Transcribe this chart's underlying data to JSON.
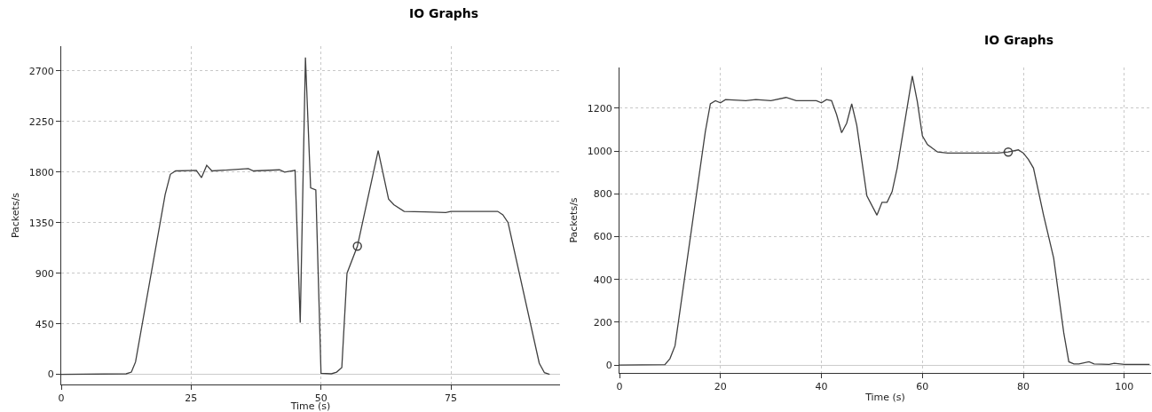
{
  "chart_data": [
    {
      "type": "line",
      "title": "IO Graphs",
      "xlabel": "Time (s)",
      "ylabel": "Packets/s",
      "xlim": [
        0,
        96
      ],
      "xticks": [
        0,
        25,
        50,
        75
      ],
      "ylim": [
        -90,
        2920
      ],
      "yticks": [
        0,
        450,
        900,
        1350,
        1800,
        2250,
        2700
      ],
      "grid": true,
      "series": [
        {
          "color": "#404040",
          "marker": "none",
          "x": [
            0,
            12.5,
            13.5,
            14.3,
            20,
            21,
            22,
            26,
            27,
            28,
            29,
            36,
            37,
            42,
            43,
            45,
            46,
            47,
            48,
            49,
            50,
            52,
            53,
            54,
            55,
            57,
            61,
            63,
            64,
            66,
            70,
            74,
            75,
            82,
            84,
            85,
            86,
            92,
            93,
            94
          ],
          "values": [
            0,
            5,
            20,
            110,
            1600,
            1780,
            1810,
            1815,
            1750,
            1860,
            1810,
            1830,
            1810,
            1820,
            1800,
            1815,
            460,
            2820,
            1660,
            1640,
            10,
            5,
            20,
            60,
            900,
            1140,
            1990,
            1560,
            1510,
            1450,
            1445,
            1440,
            1450,
            1450,
            1450,
            1420,
            1350,
            100,
            15,
            0
          ]
        },
        {
          "type": "scatter",
          "color": "#404040",
          "marker": "circle",
          "x": [
            57
          ],
          "values": [
            1140
          ]
        }
      ]
    },
    {
      "type": "line",
      "title": "IO Graphs",
      "xlabel": "Time (s)",
      "ylabel": "Packets/s",
      "xlim": [
        0,
        105.3
      ],
      "xticks": [
        0,
        20,
        40,
        60,
        80,
        100
      ],
      "ylim": [
        -37,
        1390
      ],
      "yticks": [
        0,
        200,
        400,
        600,
        800,
        1000,
        1200
      ],
      "grid": true,
      "series": [
        {
          "color": "#404040",
          "marker": "none",
          "x": [
            0,
            9,
            10,
            11,
            17,
            18,
            19,
            20,
            21,
            25,
            27,
            30,
            33,
            35,
            39,
            40,
            41,
            42,
            43,
            44,
            45,
            46,
            47,
            49,
            51,
            52,
            53,
            54,
            55,
            58,
            59,
            60,
            61,
            63,
            65,
            70,
            75,
            77,
            79,
            80,
            81,
            82,
            84,
            86,
            88,
            89,
            90,
            91,
            93,
            94,
            97,
            98,
            100,
            105
          ],
          "values": [
            0,
            2,
            30,
            90,
            1090,
            1220,
            1235,
            1225,
            1240,
            1235,
            1240,
            1235,
            1250,
            1235,
            1235,
            1225,
            1240,
            1235,
            1170,
            1085,
            1130,
            1220,
            1120,
            790,
            700,
            760,
            760,
            810,
            920,
            1350,
            1230,
            1070,
            1030,
            995,
            990,
            990,
            990,
            995,
            1005,
            990,
            960,
            920,
            700,
            500,
            150,
            15,
            5,
            5,
            15,
            5,
            3,
            8,
            3,
            3
          ]
        },
        {
          "type": "scatter",
          "color": "#404040",
          "marker": "circle",
          "x": [
            77
          ],
          "values": [
            995
          ]
        }
      ]
    }
  ]
}
